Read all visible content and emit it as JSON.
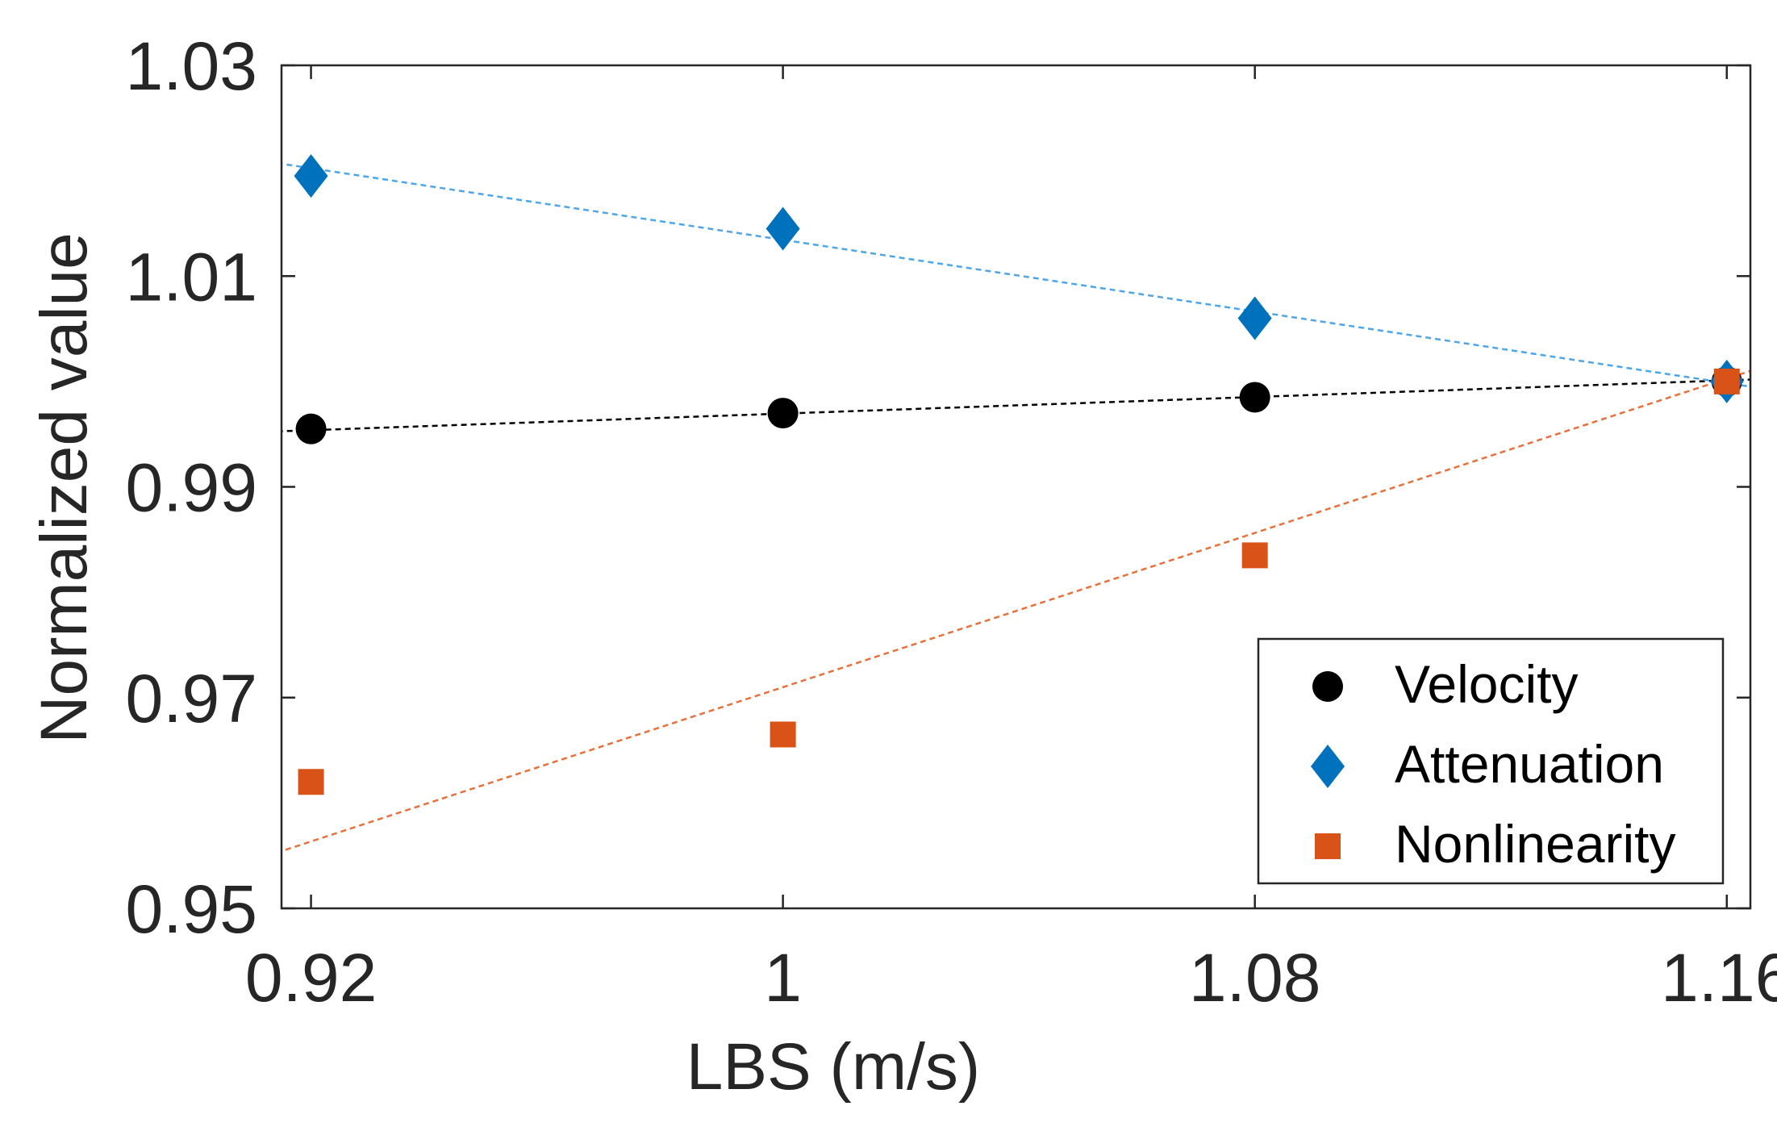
{
  "chart_data": {
    "type": "scatter",
    "xlabel": "LBS (m/s)",
    "ylabel": "Normalized value",
    "xlim": [
      0.915,
      1.164
    ],
    "ylim": [
      0.95,
      1.03
    ],
    "x_ticks": [
      0.92,
      1.0,
      1.08,
      1.16
    ],
    "x_tick_labels": [
      "0.92",
      "1",
      "1.08",
      "1.16"
    ],
    "y_ticks": [
      0.95,
      0.97,
      0.99,
      1.01,
      1.03
    ],
    "y_tick_labels": [
      "0.95",
      "0.97",
      "0.99",
      "1.01",
      "1.03"
    ],
    "grid": false,
    "legend_position": "bottom-right",
    "series": [
      {
        "name": "Velocity",
        "marker": "circle",
        "color": "#000000",
        "x": [
          0.92,
          1.0,
          1.08,
          1.16
        ],
        "y": [
          0.9955,
          0.997,
          0.9985,
          1.0
        ],
        "fit": {
          "color": "#000000",
          "x": [
            0.911,
            1.17
          ],
          "y": [
            0.9952,
            1.0003
          ]
        }
      },
      {
        "name": "Attenuation",
        "marker": "diamond",
        "color": "#0072BD",
        "x": [
          0.92,
          1.0,
          1.08,
          1.16
        ],
        "y": [
          1.0195,
          1.0145,
          1.006,
          1.0
        ],
        "fit": {
          "color": "#4DA6E8",
          "x": [
            0.911,
            1.17
          ],
          "y": [
            1.021,
            0.999
          ]
        }
      },
      {
        "name": "Nonlinearity",
        "marker": "square",
        "color": "#D95319",
        "x": [
          0.92,
          1.0,
          1.08,
          1.16
        ],
        "y": [
          0.962,
          0.9665,
          0.9835,
          1.0
        ],
        "fit": {
          "color": "#E8703A",
          "x": [
            0.911,
            1.17
          ],
          "y": [
            0.9547,
            1.0021
          ]
        }
      }
    ]
  }
}
